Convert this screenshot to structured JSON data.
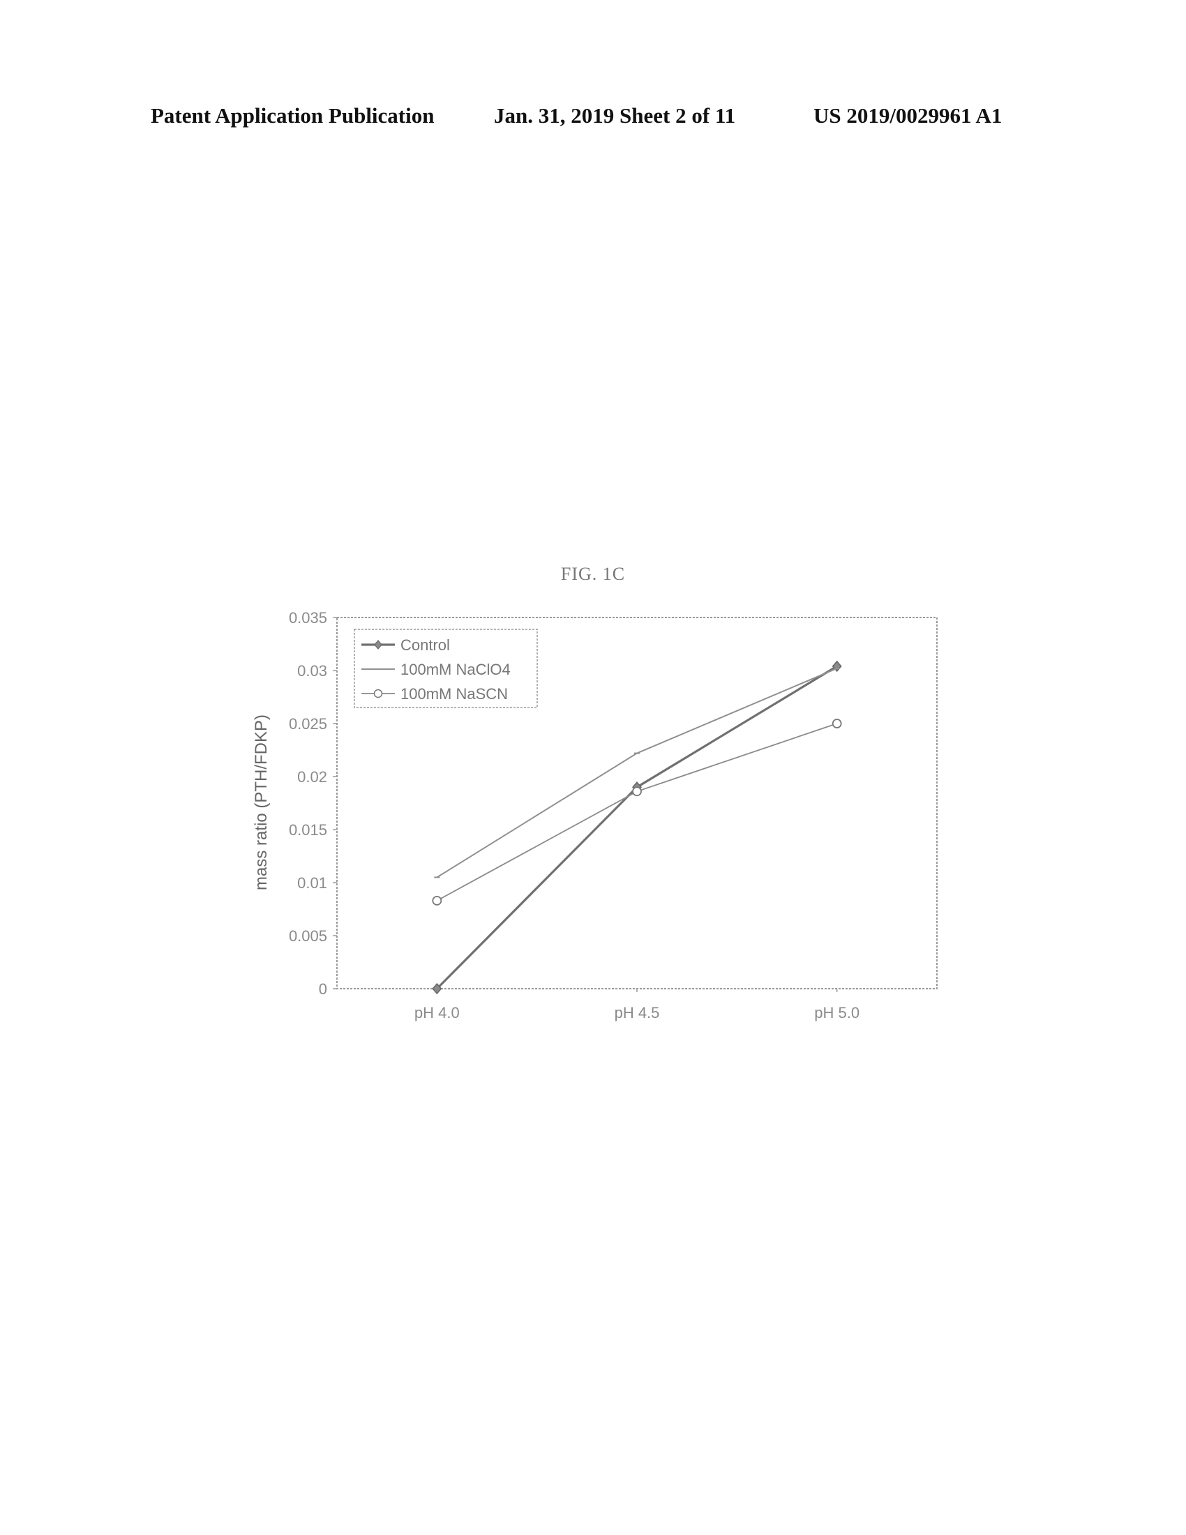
{
  "header": {
    "publication": "Patent Application Publication",
    "date_sheet": "Jan. 31, 2019  Sheet 2 of 11",
    "number": "US 2019/0029961 A1"
  },
  "figure": {
    "label": "FIG. 1C"
  },
  "chart_data": {
    "type": "line",
    "categories": [
      "pH 4.0",
      "pH 4.5",
      "pH 5.0"
    ],
    "series": [
      {
        "name": "Control",
        "values": [
          0.0,
          0.019,
          0.0304
        ],
        "marker": "diamond",
        "color": "#707070"
      },
      {
        "name": "100mM NaClO4",
        "values": [
          0.0105,
          0.0222,
          0.0302
        ],
        "marker": "none",
        "color": "#909090"
      },
      {
        "name": "100mM NaSCN",
        "values": [
          0.0083,
          0.0186,
          0.025
        ],
        "marker": "circle",
        "color": "#8a8a8a"
      }
    ],
    "ylabel": "mass ratio (PTH/FDKP)",
    "xlabel": "",
    "ylim": [
      0,
      0.035
    ],
    "yticks": [
      "0",
      "0.005",
      "0.01",
      "0.015",
      "0.02",
      "0.025",
      "0.03",
      "0.035"
    ],
    "grid": false,
    "legend_position": "top-left"
  }
}
